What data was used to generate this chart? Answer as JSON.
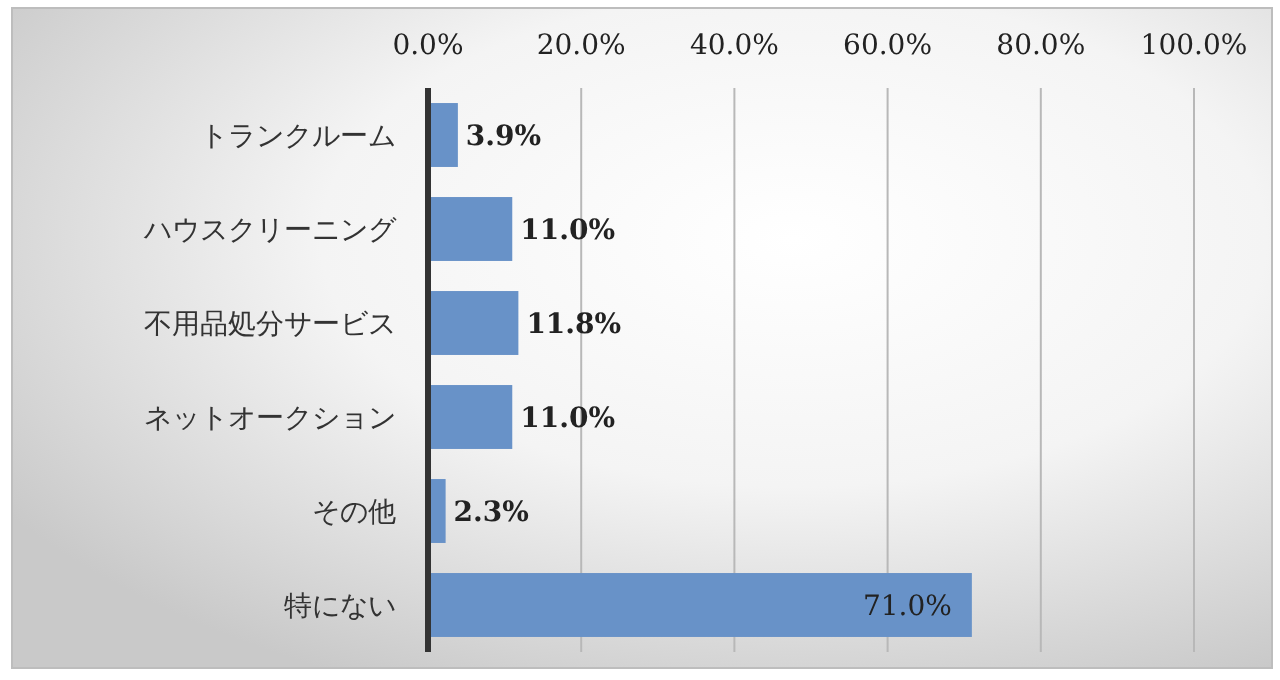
{
  "chart_data": {
    "type": "bar",
    "orientation": "horizontal",
    "categories": [
      "トランクルーム",
      "ハウスクリーニング",
      "不用品処分サービス",
      "ネットオークション",
      "その他",
      "特にない"
    ],
    "values": [
      3.9,
      11.0,
      11.8,
      11.0,
      2.3,
      71.0
    ],
    "value_labels": [
      "3.9%",
      "11.0%",
      "11.8%",
      "11.0%",
      "2.3%",
      "71.0%"
    ],
    "color": "#6892c8",
    "xlim": [
      0,
      100
    ],
    "xticks": [
      {
        "value": 0,
        "label": "0.0%"
      },
      {
        "value": 20,
        "label": "20.0%"
      },
      {
        "value": 40,
        "label": "40.0%"
      },
      {
        "value": 60,
        "label": "60.0%"
      },
      {
        "value": 80,
        "label": "80.0%"
      },
      {
        "value": 100,
        "label": "100.0%"
      }
    ],
    "grid": "x"
  }
}
